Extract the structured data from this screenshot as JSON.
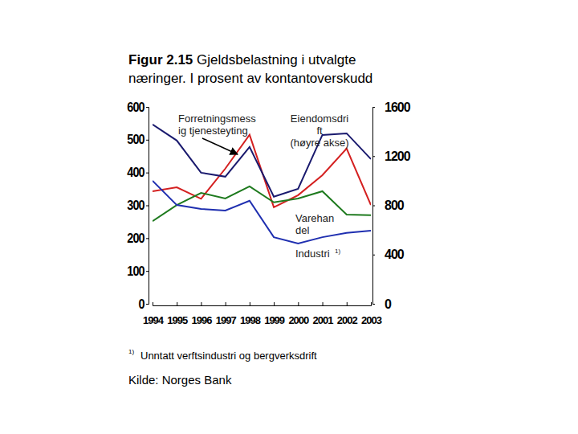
{
  "chart_data": {
    "type": "line",
    "title": "Figur 2.15 Gjeldsbelastning i utvalgte\nnæringer. I prosent av kontantoverskudd",
    "x": [
      1994,
      1995,
      1996,
      1997,
      1998,
      1999,
      2000,
      2001,
      2002,
      2003
    ],
    "xlim": [
      1994,
      2003
    ],
    "xticks": [
      1994,
      1995,
      1996,
      1997,
      1998,
      1999,
      2000,
      2001,
      2002,
      2003
    ],
    "ylim": [
      0,
      600
    ],
    "yticks": [
      0,
      100,
      200,
      300,
      400,
      500,
      600
    ],
    "y2lim": [
      0,
      1600
    ],
    "y2ticks": [
      0,
      400,
      800,
      1200,
      1600
    ],
    "grid": false,
    "series": [
      {
        "name": "Forretningsmess\nig tjenesteyting",
        "color": "#d42020",
        "values": [
          343,
          355,
          320,
          412,
          515,
          294,
          331,
          392,
          473,
          301
        ]
      },
      {
        "name": "Eiendomsdri\nft\n(høyre akse)",
        "color": "#1a1a6e",
        "axis": "y2",
        "values": [
          1457,
          1327,
          1065,
          1033,
          1275,
          870,
          935,
          1372,
          1385,
          1176
        ]
      },
      {
        "name": "Varehan\ndel",
        "color": "#1e7a1e",
        "values": [
          252,
          301,
          338,
          321,
          358,
          309,
          321,
          343,
          272,
          270
        ]
      },
      {
        "name": "Industri",
        "note": "1)",
        "color": "#1f2fb0",
        "values": [
          375,
          301,
          289,
          284,
          314,
          203,
          184,
          203,
          216,
          223
        ]
      }
    ],
    "footnote": {
      "mark": "1)",
      "text": "Unntatt verftsindustri og bergverksdrift"
    },
    "source": "Kilde: Norges Bank"
  }
}
